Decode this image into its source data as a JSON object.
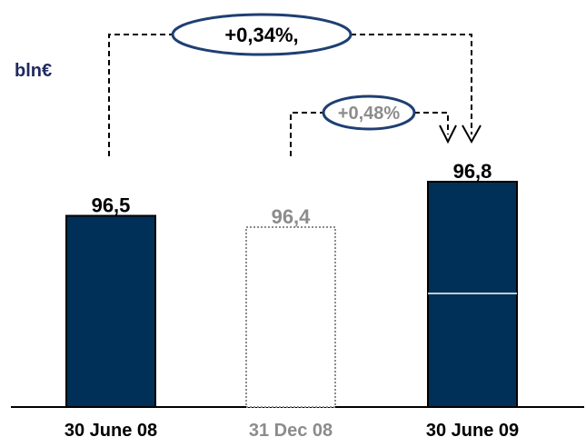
{
  "chart_data": {
    "type": "bar",
    "unit": "bln€",
    "categories": [
      "30 June 08",
      "31 Dec 08",
      "30 June 09"
    ],
    "values": [
      96.5,
      96.4,
      96.8
    ],
    "value_labels": [
      "96,5",
      "96,4",
      "96,8"
    ],
    "highlighted": [
      true,
      false,
      true
    ],
    "annotations": [
      {
        "label": "+0,34%,",
        "from": "30 June 08",
        "to": "30 June 09"
      },
      {
        "label": "+0,48%",
        "from": "31 Dec 08",
        "to": "30 June 09"
      }
    ]
  },
  "colors": {
    "bar": "#003057",
    "muted": "#8c8c8c",
    "text": "#000000",
    "oval": "#1f3f73",
    "unit": "#1f2a60"
  }
}
